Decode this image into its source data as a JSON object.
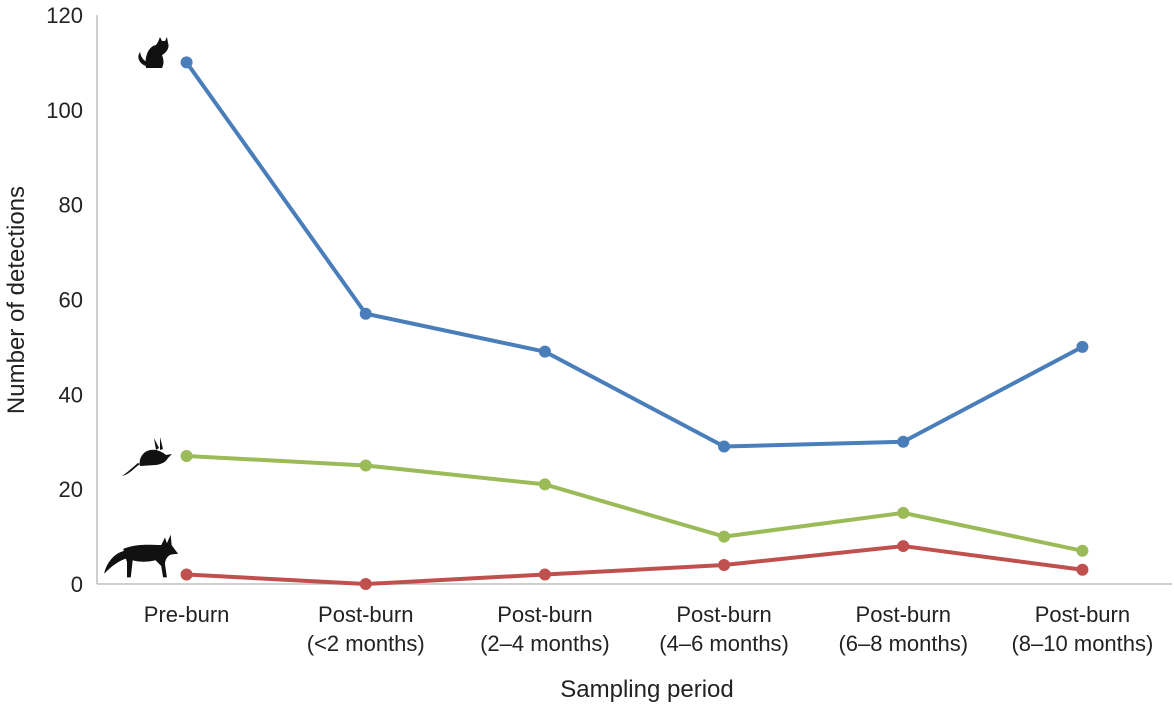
{
  "chart_data": {
    "type": "line",
    "title": "",
    "xlabel": "Sampling period",
    "ylabel": "Number of detections",
    "ylim": [
      0,
      120
    ],
    "yticks": [
      0,
      20,
      40,
      60,
      80,
      100,
      120
    ],
    "grid": false,
    "categories": [
      [
        "Pre-burn"
      ],
      [
        "Post-burn",
        "(<2 months)"
      ],
      [
        "Post-burn",
        "(2–4 months)"
      ],
      [
        "Post-burn",
        "(4–6 months)"
      ],
      [
        "Post-burn",
        "(6–8 months)"
      ],
      [
        "Post-burn",
        "(8–10 months)"
      ]
    ],
    "series": [
      {
        "values": [
          110,
          57,
          49,
          29,
          30,
          50
        ],
        "color": "#4a7ebb",
        "icon": "cat-icon"
      },
      {
        "values": [
          27,
          25,
          21,
          10,
          15,
          7
        ],
        "color": "#9bbb59",
        "icon": "rodent-icon"
      },
      {
        "values": [
          2,
          0,
          2,
          4,
          8,
          3
        ],
        "color": "#c0504d",
        "icon": "fox-icon"
      }
    ]
  }
}
